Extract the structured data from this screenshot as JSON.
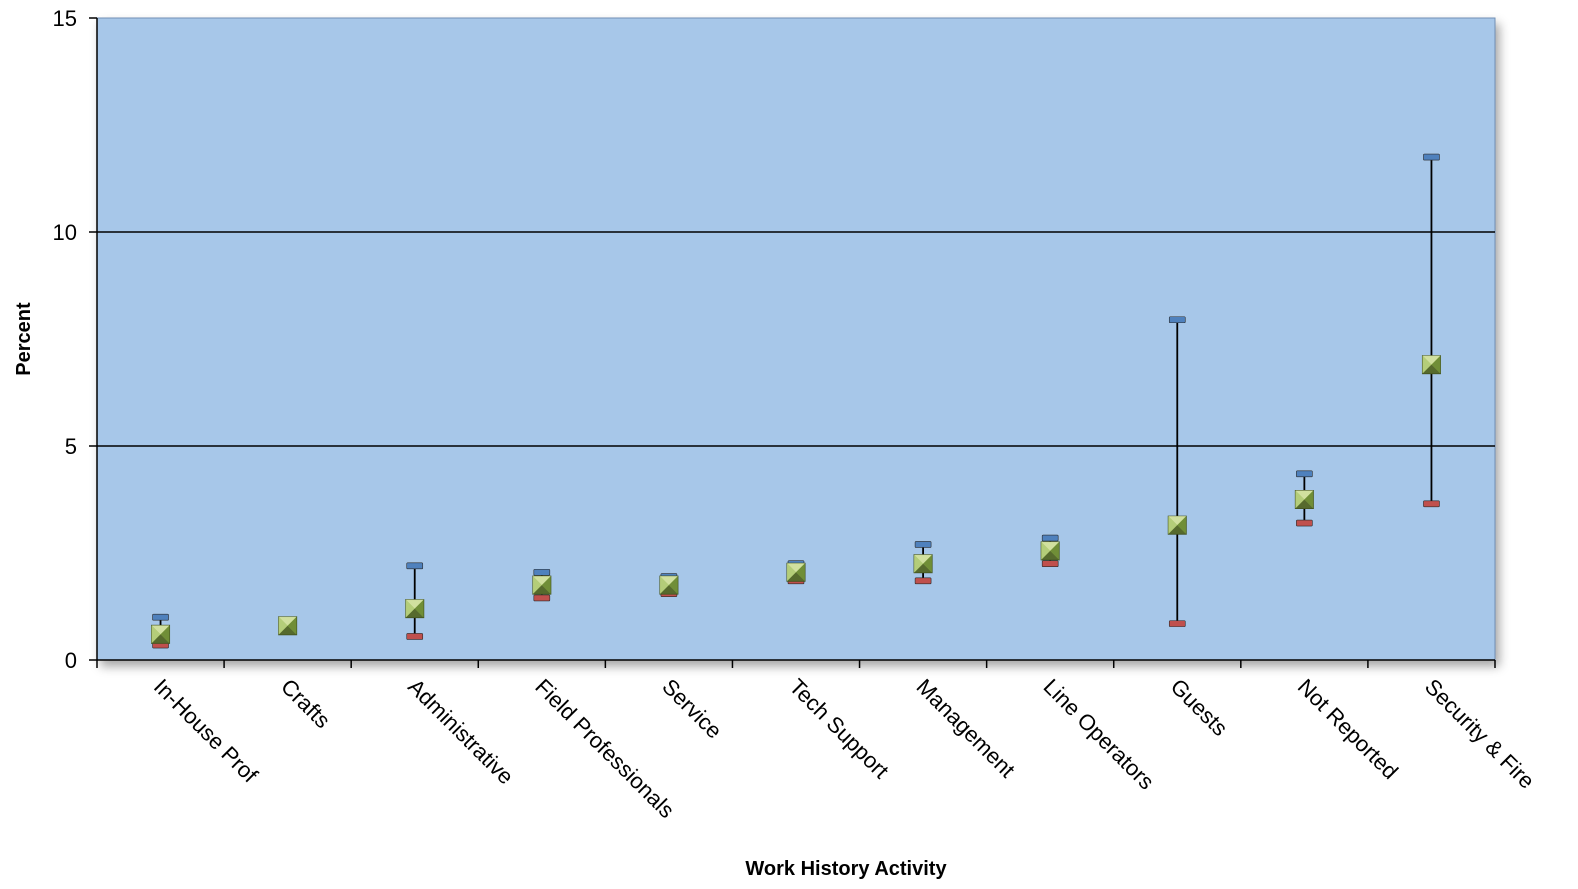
{
  "chart_data": {
    "type": "scatter",
    "title": "",
    "xlabel": "Work History Activity",
    "ylabel": "Percent",
    "ylim": [
      0,
      15
    ],
    "yticks": [
      0,
      5,
      10,
      15
    ],
    "grid": "horizontal major lines",
    "legend": "none",
    "categories": [
      "In-House Prof",
      "Crafts",
      "Administrative",
      "Field Professionals",
      "Service",
      "Tech Support",
      "Management",
      "Line Operators",
      "Guests",
      "Not Reported",
      "Security & Fire"
    ],
    "series": [
      {
        "values": [
          0.6,
          0.8,
          1.2,
          1.75,
          1.75,
          2.05,
          2.25,
          2.55,
          3.15,
          3.75,
          6.9
        ]
      },
      {
        "values": [
          1.0,
          null,
          2.2,
          2.05,
          1.95,
          2.25,
          2.7,
          2.85,
          7.95,
          4.35,
          11.75
        ]
      },
      {
        "values": [
          0.35,
          null,
          0.55,
          1.45,
          1.55,
          1.85,
          1.85,
          2.25,
          0.85,
          3.2,
          3.65
        ]
      }
    ],
    "colors": {
      "plot_background": "#a7c7e9",
      "upper_marker": "#4f81bd",
      "lower_marker": "#c0504d",
      "center_marker": "#9bbb59",
      "error_line": "#000000"
    }
  }
}
